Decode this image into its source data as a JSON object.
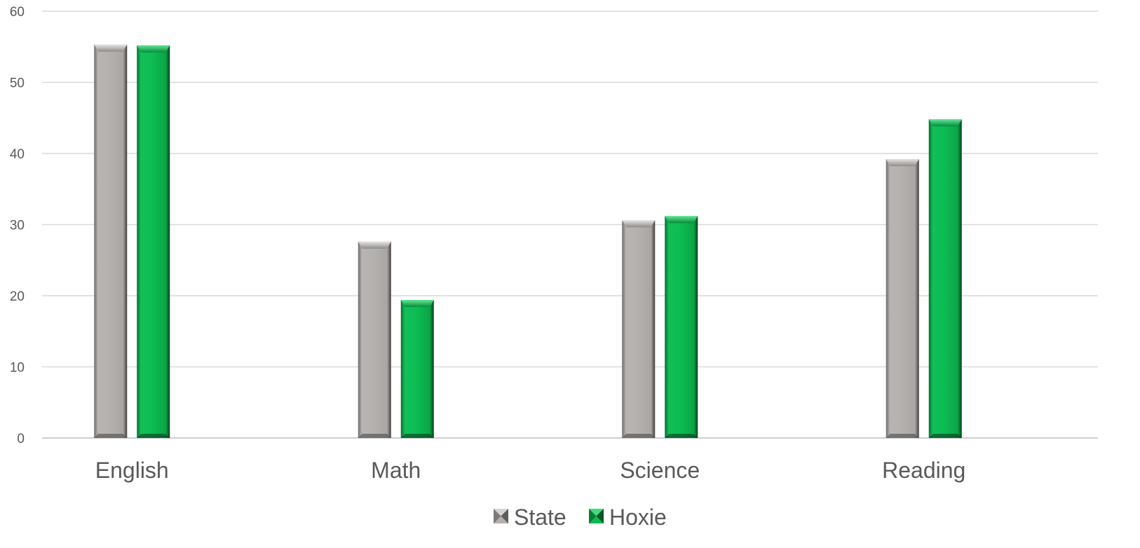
{
  "chart_data": {
    "type": "bar",
    "categories": [
      "English",
      "Math",
      "Science",
      "Reading"
    ],
    "series": [
      {
        "name": "State",
        "values": [
          55.3,
          27.6,
          30.6,
          39.2
        ],
        "color": "#b3b0ae"
      },
      {
        "name": "Hoxie",
        "values": [
          55.2,
          19.4,
          31.2,
          44.8
        ],
        "color": "#0dbb52"
      }
    ],
    "ylim": [
      0,
      60
    ],
    "yticks": [
      0,
      10,
      20,
      30,
      40,
      50,
      60
    ],
    "grid": true,
    "legend": "bottom"
  }
}
